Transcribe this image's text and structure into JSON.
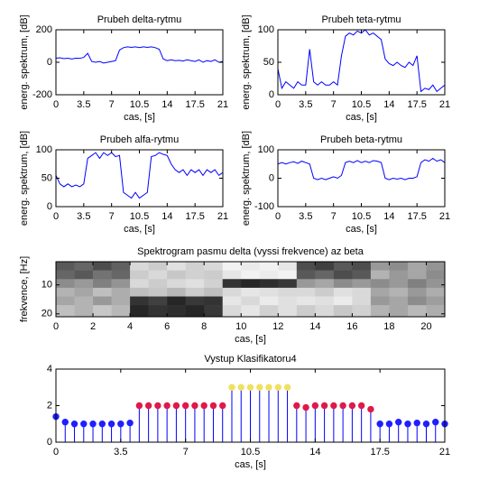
{
  "chart_data": [
    {
      "type": "line",
      "title": "Prubeh delta-rytmu",
      "xlabel": "cas, [s]",
      "ylabel": "energ. spektrum, [dB]",
      "color": "#0000ff",
      "xlim": [
        0,
        21
      ],
      "xticks": [
        0,
        3.5,
        7,
        10.5,
        14,
        17.5,
        21
      ],
      "ylim": [
        -200,
        200
      ],
      "yticks": [
        -200,
        0,
        200
      ],
      "x": [
        0,
        0.5,
        1,
        1.5,
        2,
        2.5,
        3,
        3.5,
        4,
        4.5,
        5,
        5.5,
        6,
        6.5,
        7,
        7.5,
        8,
        8.5,
        9,
        9.5,
        10,
        10.5,
        11,
        11.5,
        12,
        12.5,
        13,
        13.5,
        14,
        14.5,
        15,
        15.5,
        16,
        16.5,
        17,
        17.5,
        18,
        18.5,
        19,
        19.5,
        20,
        20.5,
        21
      ],
      "values": [
        25,
        28,
        22,
        25,
        20,
        25,
        24,
        30,
        55,
        5,
        0,
        5,
        -5,
        0,
        5,
        10,
        75,
        90,
        95,
        92,
        95,
        90,
        95,
        92,
        95,
        90,
        80,
        20,
        10,
        15,
        10,
        12,
        8,
        15,
        10,
        5,
        15,
        0,
        10,
        5,
        15,
        0,
        5
      ]
    },
    {
      "type": "line",
      "title": "Prubeh teta-rytmu",
      "xlabel": "cas, [s]",
      "ylabel": "energ. spektrum, [dB]",
      "color": "#0000ff",
      "xlim": [
        0,
        21
      ],
      "xticks": [
        0,
        3.5,
        7,
        10.5,
        14,
        17.5,
        21
      ],
      "ylim": [
        0,
        100
      ],
      "yticks": [
        0,
        50,
        100
      ],
      "x": [
        0,
        0.5,
        1,
        1.5,
        2,
        2.5,
        3,
        3.5,
        4,
        4.5,
        5,
        5.5,
        6,
        6.5,
        7,
        7.5,
        8,
        8.5,
        9,
        9.5,
        10,
        10.5,
        11,
        11.5,
        12,
        12.5,
        13,
        13.5,
        14,
        14.5,
        15,
        15.5,
        16,
        16.5,
        17,
        17.5,
        18,
        18.5,
        19,
        19.5,
        20,
        20.5,
        21
      ],
      "values": [
        40,
        10,
        20,
        15,
        10,
        20,
        15,
        15,
        70,
        20,
        15,
        20,
        15,
        15,
        20,
        15,
        60,
        90,
        95,
        92,
        98,
        95,
        100,
        92,
        95,
        90,
        85,
        55,
        48,
        45,
        50,
        45,
        42,
        50,
        45,
        60,
        5,
        10,
        8,
        15,
        5,
        10,
        15
      ]
    },
    {
      "type": "line",
      "title": "Prubeh alfa-rytmu",
      "xlabel": "cas, [s]",
      "ylabel": "energ. spektrum, [dB]",
      "color": "#0000ff",
      "xlim": [
        0,
        21
      ],
      "xticks": [
        0,
        3.5,
        7,
        10.5,
        14,
        17.5,
        21
      ],
      "ylim": [
        0,
        100
      ],
      "yticks": [
        0,
        50,
        100
      ],
      "x": [
        0,
        0.5,
        1,
        1.5,
        2,
        2.5,
        3,
        3.5,
        4,
        4.5,
        5,
        5.5,
        6,
        6.5,
        7,
        7.5,
        8,
        8.5,
        9,
        9.5,
        10,
        10.5,
        11,
        11.5,
        12,
        12.5,
        13,
        13.5,
        14,
        14.5,
        15,
        15.5,
        16,
        16.5,
        17,
        17.5,
        18,
        18.5,
        19,
        19.5,
        20,
        20.5,
        21
      ],
      "values": [
        55,
        40,
        35,
        40,
        35,
        38,
        35,
        40,
        85,
        90,
        95,
        85,
        95,
        90,
        95,
        88,
        90,
        25,
        20,
        15,
        25,
        15,
        20,
        25,
        88,
        90,
        95,
        92,
        90,
        75,
        65,
        60,
        65,
        55,
        65,
        60,
        65,
        55,
        65,
        60,
        65,
        55,
        60
      ]
    },
    {
      "type": "line",
      "title": "Prubeh beta-rytmu",
      "xlabel": "cas, [s]",
      "ylabel": "energ. spektrum, [dB]",
      "color": "#0000ff",
      "xlim": [
        0,
        21
      ],
      "xticks": [
        0,
        3.5,
        7,
        10.5,
        14,
        17.5,
        21
      ],
      "ylim": [
        -100,
        100
      ],
      "yticks": [
        -100,
        0,
        100
      ],
      "x": [
        0,
        0.5,
        1,
        1.5,
        2,
        2.5,
        3,
        3.5,
        4,
        4.5,
        5,
        5.5,
        6,
        6.5,
        7,
        7.5,
        8,
        8.5,
        9,
        9.5,
        10,
        10.5,
        11,
        11.5,
        12,
        12.5,
        13,
        13.5,
        14,
        14.5,
        15,
        15.5,
        16,
        16.5,
        17,
        17.5,
        18,
        18.5,
        19,
        19.5,
        20,
        20.5,
        21
      ],
      "values": [
        50,
        55,
        50,
        55,
        58,
        52,
        60,
        55,
        50,
        0,
        -5,
        0,
        -5,
        0,
        5,
        0,
        10,
        55,
        60,
        55,
        62,
        55,
        60,
        55,
        62,
        60,
        55,
        0,
        -5,
        0,
        -3,
        0,
        -5,
        0,
        0,
        5,
        55,
        65,
        60,
        70,
        60,
        65,
        55
      ]
    },
    {
      "type": "heatmap",
      "title": "Spektrogram pasmu delta (vyssi frekvence) az beta",
      "xlabel": "cas, [s]",
      "ylabel": "frekvence, [Hz]",
      "colormap": "gray",
      "clim": [
        0,
        100
      ],
      "y_reversed": true,
      "xlim": [
        0,
        21
      ],
      "xticks": [
        0,
        2,
        4,
        6,
        8,
        10,
        12,
        14,
        16,
        18,
        20
      ],
      "ylim": [
        2,
        21
      ],
      "yticks": [
        10,
        20
      ],
      "x_bins": [
        0,
        1,
        2,
        3,
        4,
        5,
        6,
        7,
        8,
        9,
        10,
        11,
        12,
        13,
        14,
        15,
        16,
        17,
        18,
        19,
        20,
        21
      ],
      "y_bins": [
        2,
        5,
        8,
        11,
        14,
        17,
        21
      ],
      "values": [
        [
          35,
          40,
          30,
          38,
          85,
          80,
          88,
          82,
          85,
          95,
          92,
          95,
          90,
          30,
          25,
          35,
          30,
          60,
          55,
          65,
          58
        ],
        [
          40,
          35,
          45,
          40,
          80,
          85,
          78,
          82,
          80,
          90,
          95,
          92,
          95,
          35,
          40,
          30,
          35,
          70,
          60,
          65,
          55
        ],
        [
          55,
          60,
          50,
          58,
          85,
          80,
          85,
          88,
          82,
          20,
          15,
          18,
          22,
          60,
          65,
          55,
          60,
          55,
          60,
          50,
          58
        ],
        [
          70,
          65,
          75,
          68,
          75,
          78,
          72,
          80,
          75,
          85,
          90,
          88,
          85,
          85,
          80,
          88,
          85,
          65,
          70,
          60,
          68
        ],
        [
          65,
          70,
          60,
          68,
          20,
          25,
          15,
          22,
          20,
          90,
          85,
          92,
          88,
          90,
          88,
          92,
          85,
          60,
          65,
          55,
          62
        ],
        [
          75,
          70,
          78,
          72,
          15,
          20,
          18,
          15,
          22,
          85,
          90,
          82,
          88,
          80,
          85,
          78,
          82,
          70,
          65,
          72,
          68
        ]
      ]
    },
    {
      "type": "stem",
      "title": "Vystup Klasifikatoru4",
      "xlabel": "cas, [s]",
      "stem_color": "#0000ff",
      "xlim": [
        0,
        21
      ],
      "xticks": [
        0,
        3.5,
        7,
        10.5,
        14,
        17.5,
        21
      ],
      "ylim": [
        0,
        4
      ],
      "yticks": [
        0,
        2,
        4
      ],
      "series": [
        {
          "color": "#1f1fff",
          "x": [
            0,
            0.5,
            1,
            1.5,
            2,
            2.5,
            3,
            3.5,
            4,
            17.5,
            18,
            18.5,
            19,
            19.5,
            20,
            20.5,
            21
          ],
          "values": [
            1.4,
            1.1,
            1,
            1,
            1,
            1,
            1,
            1,
            1.05,
            1,
            1,
            1.1,
            1,
            1.05,
            1,
            1.1,
            1
          ]
        },
        {
          "color": "#e0194a",
          "x": [
            4.5,
            5,
            5.5,
            6,
            6.5,
            7,
            7.5,
            8,
            8.5,
            9,
            13,
            13.5,
            14,
            14.5,
            15,
            15.5,
            16,
            16.5,
            17
          ],
          "values": [
            2,
            2,
            2,
            2,
            2,
            2,
            2,
            2,
            2,
            2,
            2,
            1.9,
            2,
            2,
            2,
            2,
            2,
            2,
            1.8
          ]
        },
        {
          "color": "#f0e060",
          "x": [
            9.5,
            10,
            10.5,
            11,
            11.5,
            12,
            12.5
          ],
          "values": [
            3,
            3,
            3,
            3,
            3,
            3,
            3
          ]
        }
      ]
    }
  ]
}
